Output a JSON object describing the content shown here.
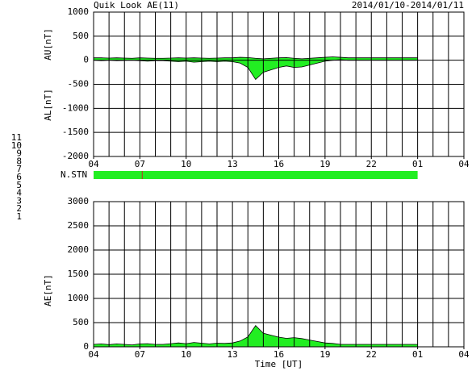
{
  "header": {
    "title": "Quik Look AE(11)",
    "date_range": "2014/01/10-2014/01/11"
  },
  "station_legend": {
    "labels": [
      "11",
      "10",
      "9",
      "8",
      "7",
      "6",
      "5",
      "4",
      "3",
      "2",
      "1"
    ],
    "colors": [
      "#33ccff",
      "#ff00ff",
      "#2222aa",
      "#eeee66",
      "#88ee88",
      "#ff0000",
      "#dddddd",
      "#bbbbbb",
      "#33aaaa",
      "#aa22aa",
      "#2222ff"
    ]
  },
  "chart_data": [
    {
      "type": "area",
      "ylabels": [
        "AU[nT]",
        "AL[nT]"
      ],
      "x": [
        4,
        4.5,
        5,
        5.5,
        6,
        6.5,
        7,
        7.5,
        8,
        8.5,
        9,
        9.5,
        10,
        10.5,
        11,
        11.5,
        12,
        12.5,
        13,
        13.5,
        14,
        14.5,
        15,
        15.5,
        16,
        16.5,
        17,
        17.5,
        18,
        18.5,
        19,
        19.5,
        20,
        20.5,
        21,
        21.5,
        22,
        22.5,
        23,
        23.5,
        24,
        24.5,
        25
      ],
      "series": [
        {
          "color": "#22ee22",
          "line_color": "#000000",
          "values": [
            50,
            50,
            45,
            50,
            45,
            40,
            50,
            45,
            40,
            40,
            45,
            50,
            45,
            50,
            45,
            40,
            45,
            50,
            50,
            60,
            55,
            40,
            30,
            40,
            50,
            55,
            40,
            30,
            40,
            50,
            60,
            70,
            60,
            50,
            50,
            50,
            50,
            50,
            50,
            50,
            50,
            50,
            50
          ]
        },
        {
          "color": "#22ee22",
          "line_color": "#000000",
          "values": [
            0,
            -10,
            0,
            -10,
            -5,
            0,
            -10,
            -20,
            -10,
            -10,
            -20,
            -30,
            -20,
            -40,
            -30,
            -20,
            -30,
            -20,
            -30,
            -60,
            -150,
            -400,
            -250,
            -200,
            -150,
            -120,
            -150,
            -140,
            -100,
            -60,
            -20,
            0,
            10,
            0,
            0,
            0,
            0,
            0,
            0,
            0,
            0,
            0,
            0
          ]
        }
      ],
      "xlim": [
        4,
        28
      ],
      "xticks": [
        {
          "value": 4,
          "label": "04"
        },
        {
          "value": 7,
          "label": "07"
        },
        {
          "value": 10,
          "label": "10"
        },
        13,
        16,
        19,
        22,
        {
          "value": 25,
          "label": "01"
        },
        {
          "value": 28,
          "label": "04"
        }
      ],
      "xgrid_step": 1,
      "ylim": [
        -2000,
        1000
      ],
      "yticks": [
        1000,
        500,
        0,
        -500,
        -1000,
        -1500,
        -2000
      ],
      "grid": true
    },
    {
      "type": "status",
      "label": "N.STN",
      "span": [
        4,
        25
      ],
      "color": "#22ee22",
      "marker_x": 7.15,
      "marker_color": "#cc2222",
      "xlim": [
        4,
        28
      ]
    },
    {
      "type": "area",
      "ylabels": [
        "AE[nT]"
      ],
      "xlabel": "Time [UT]",
      "x": [
        4,
        4.5,
        5,
        5.5,
        6,
        6.5,
        7,
        7.5,
        8,
        8.5,
        9,
        9.5,
        10,
        10.5,
        11,
        11.5,
        12,
        12.5,
        13,
        13.5,
        14,
        14.5,
        15,
        15.5,
        16,
        16.5,
        17,
        17.5,
        18,
        18.5,
        19,
        19.5,
        20,
        20.5,
        21,
        21.5,
        22,
        22.5,
        23,
        23.5,
        24,
        24.5,
        25
      ],
      "series": [
        {
          "color": "#22ee22",
          "line_color": "#000000",
          "values": [
            50,
            60,
            45,
            60,
            50,
            40,
            60,
            65,
            50,
            50,
            65,
            80,
            65,
            90,
            75,
            60,
            75,
            70,
            80,
            120,
            205,
            440,
            280,
            240,
            200,
            175,
            190,
            170,
            140,
            110,
            80,
            70,
            50,
            50,
            50,
            50,
            50,
            50,
            50,
            50,
            50,
            50,
            50
          ]
        }
      ],
      "xlim": [
        4,
        28
      ],
      "xticks": [
        {
          "value": 4,
          "label": "04"
        },
        {
          "value": 7,
          "label": "07"
        },
        {
          "value": 10,
          "label": "10"
        },
        13,
        16,
        19,
        22,
        {
          "value": 25,
          "label": "01"
        },
        {
          "value": 28,
          "label": "04"
        }
      ],
      "xgrid_step": 1,
      "ylim": [
        0,
        3000
      ],
      "yticks": [
        3000,
        2500,
        2000,
        1500,
        1000,
        500,
        0
      ],
      "grid": true
    }
  ]
}
